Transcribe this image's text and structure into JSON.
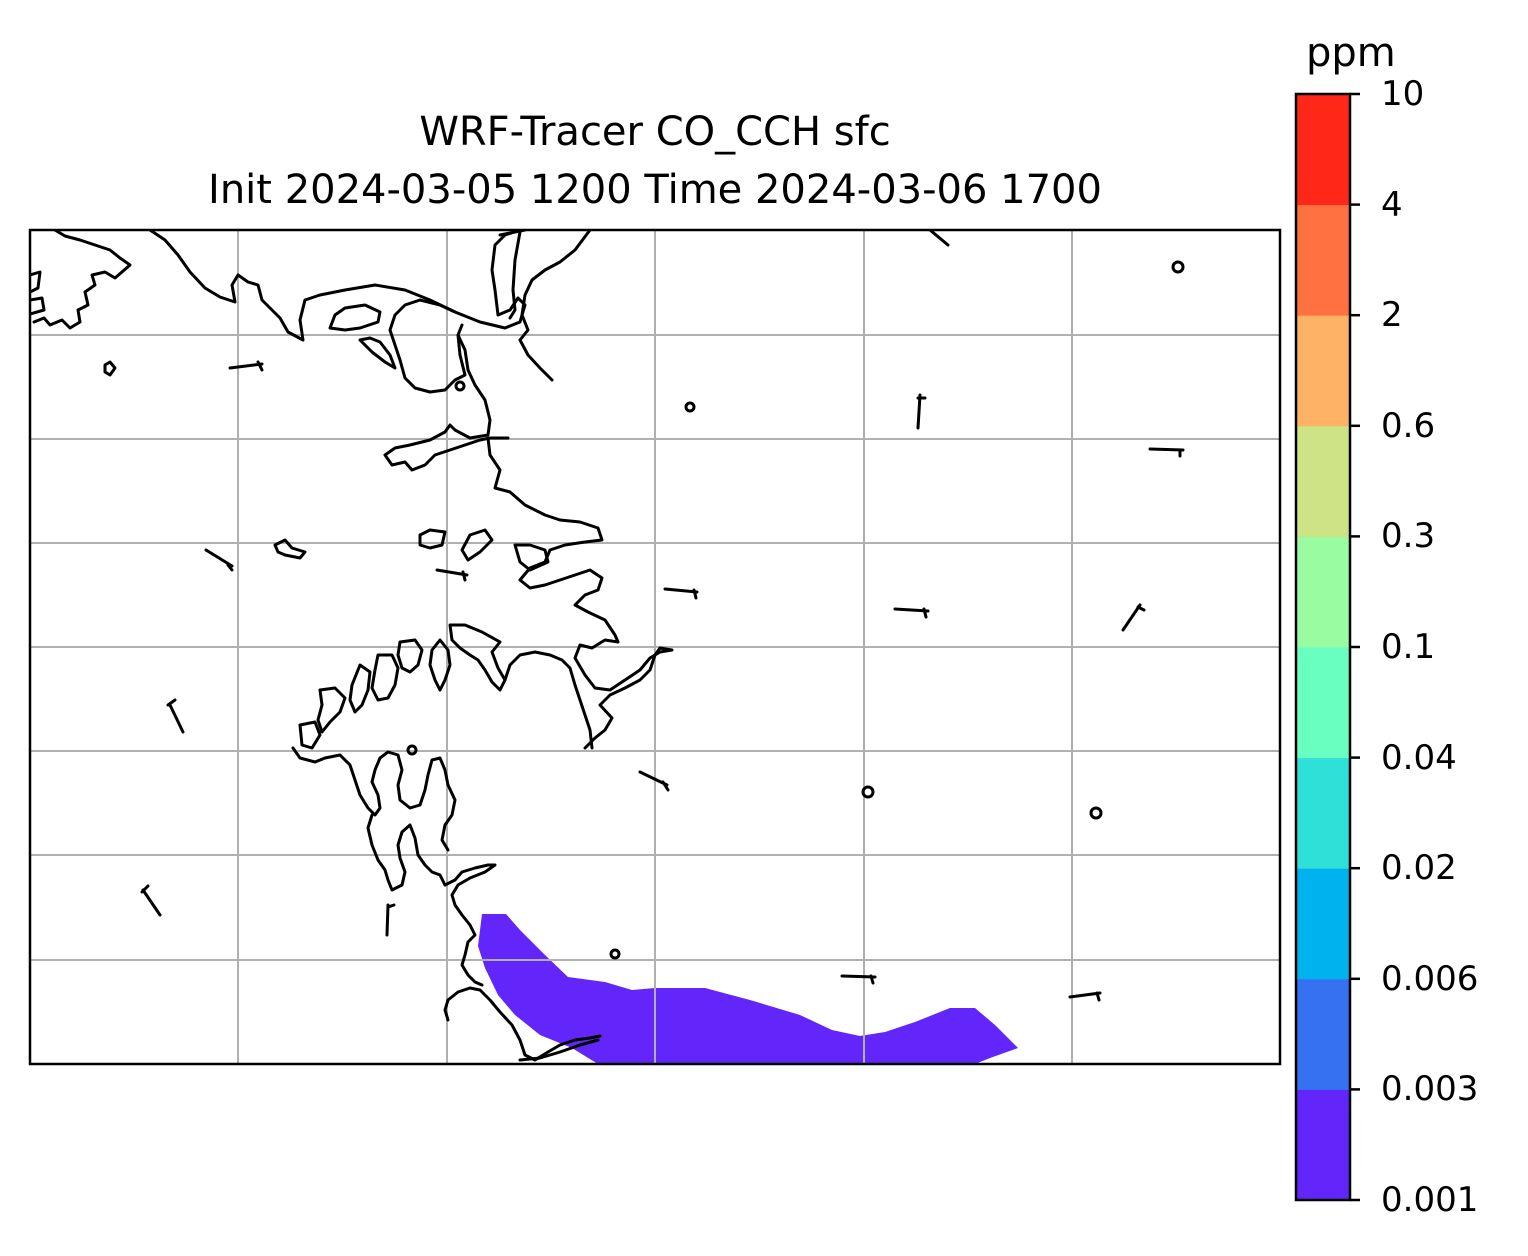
{
  "title": "WRF-Tracer CO_CCH sfc",
  "subtitle": "Init 2024-03-05 1200 Time 2024-03-06 1700",
  "colorbar": {
    "unit": "ppm",
    "ticks": [
      "0.001",
      "0.003",
      "0.006",
      "0.02",
      "0.04",
      "0.1",
      "0.3",
      "0.6",
      "2",
      "4",
      "10"
    ],
    "colors": [
      "#6226fb",
      "#3671f2",
      "#00b3ee",
      "#2ee0d8",
      "#68ffc0",
      "#9afca0",
      "#cee286",
      "#feb266",
      "#ff7140",
      "#ff2718"
    ]
  },
  "map": {
    "gridlines": true,
    "gridline_color": "#b0b0b0",
    "coastline_color": "#000000",
    "plume_level": "0.001–0.003"
  }
}
